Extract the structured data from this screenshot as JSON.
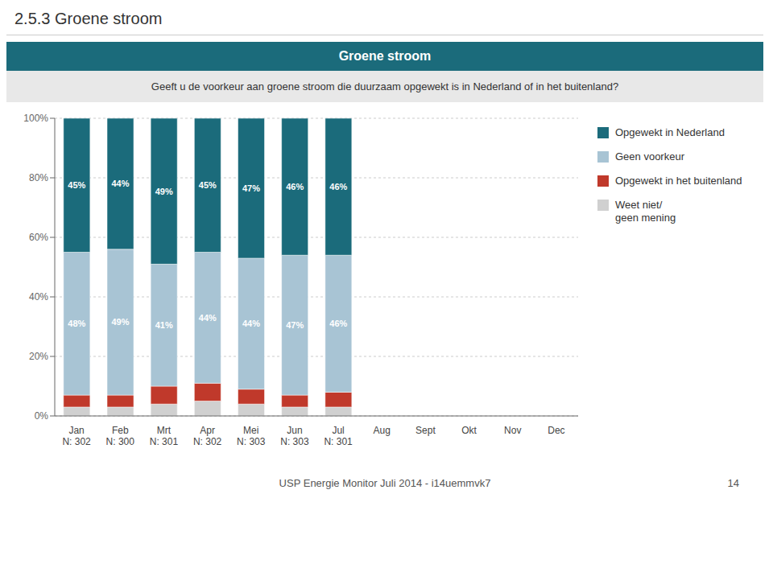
{
  "chart_data": {
    "type": "bar",
    "title": "Groene stroom",
    "subtitle": "Geeft u de voorkeur aan groene stroom die duurzaam opgewekt is in Nederland of in het buitenland?",
    "annotations": [
      "2.5.3 Groene stroom",
      "USP Energie Monitor Juli 2014 - i14uemmvk7",
      "14"
    ],
    "categories": [
      "Jan\nN: 302",
      "Feb\nN: 300",
      "Mrt\nN: 301",
      "Apr\nN: 302",
      "Mei\nN: 303",
      "Jun\nN: 303",
      "Jul\nN: 301",
      "Aug",
      "Sept",
      "Okt",
      "Nov",
      "Dec"
    ],
    "stacked": true,
    "grid": true,
    "legend": "right",
    "ylim": [
      0,
      100
    ],
    "yticks": [
      {
        "value": 0,
        "label": "0%"
      },
      {
        "value": 20,
        "label": "20%"
      },
      {
        "value": 40,
        "label": "40%"
      },
      {
        "value": 60,
        "label": "60%"
      },
      {
        "value": 80,
        "label": "80%"
      },
      {
        "value": 100,
        "label": "100%"
      }
    ],
    "series": [
      {
        "name": "Opgewekt in Nederland",
        "color": "#1b6b7b",
        "values": [
          45,
          44,
          49,
          45,
          47,
          46,
          46,
          0,
          0,
          0,
          0,
          0
        ],
        "data_labels": true,
        "value_labels": [
          "45%",
          "44%",
          "49%",
          "45%",
          "47%",
          "46%",
          "46%",
          null,
          null,
          null,
          null,
          null
        ]
      },
      {
        "name": "Geen voorkeur",
        "color": "#a8c4d4",
        "values": [
          48,
          49,
          41,
          44,
          44,
          47,
          46,
          0,
          0,
          0,
          0,
          0
        ],
        "data_labels": true,
        "value_labels": [
          "48%",
          "49%",
          "41%",
          "44%",
          "44%",
          "47%",
          "46%",
          null,
          null,
          null,
          null,
          null
        ]
      },
      {
        "name": "Opgewekt in het buitenland",
        "color": "#c0392b",
        "values": [
          4,
          4,
          6,
          6,
          5,
          4,
          5,
          0,
          0,
          0,
          0,
          0
        ]
      },
      {
        "name": "Weet niet/\ngeen mening",
        "color": "#d0d0d0",
        "values": [
          3,
          3,
          4,
          5,
          4,
          3,
          3,
          0,
          0,
          0,
          0,
          0
        ]
      }
    ]
  }
}
